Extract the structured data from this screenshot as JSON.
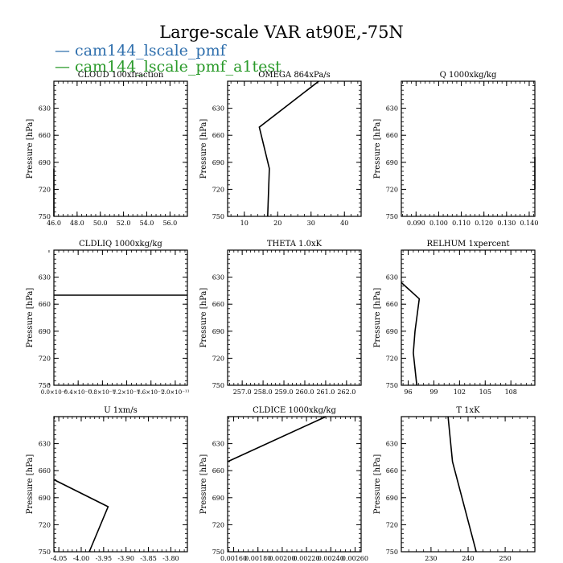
{
  "title": "Large-scale VAR at90E,-75N",
  "legend": {
    "items": [
      {
        "label": "cam144_lscale_pmf",
        "color": "#2f6fad"
      },
      {
        "label": "cam144_lscale_pmf_a1test",
        "color": "#2a9a2a"
      }
    ]
  },
  "chart_data": [
    {
      "type": "line",
      "title": "CLOUD  100xfraction",
      "ylabel": "Pressure [hPa]",
      "ylim": [
        750,
        600
      ],
      "yticks": [
        630,
        660,
        690,
        720,
        750
      ],
      "xlim": [
        46.0,
        57.5
      ],
      "xticks": [
        46.0,
        48.0,
        50.0,
        52.0,
        54.0,
        56.0
      ],
      "xticklabels": [
        "46.0",
        "48.0",
        "50.0",
        "52.0",
        "54.0",
        "56.0"
      ],
      "series": [
        {
          "x": [
            46.0,
            46.0
          ],
          "y": [
            697,
            750
          ]
        }
      ]
    },
    {
      "type": "line",
      "title": "OMEGA  864xPa/s",
      "ylabel": "Pressure [hPa]",
      "ylim": [
        750,
        600
      ],
      "yticks": [
        630,
        660,
        690,
        720,
        750
      ],
      "xlim": [
        5,
        45
      ],
      "xticks": [
        10,
        20,
        30,
        40
      ],
      "xticklabels": [
        "10",
        "20",
        "30",
        "40"
      ],
      "series": [
        {
          "x": [
            32.3,
            14.5,
            17.5,
            17.0
          ],
          "y": [
            600,
            651,
            697,
            750
          ]
        }
      ]
    },
    {
      "type": "line",
      "title": "Q  1000xkg/kg",
      "ylabel": "Pressure [hPa]",
      "ylim": [
        750,
        600
      ],
      "yticks": [
        630,
        660,
        690,
        720,
        750
      ],
      "xlim": [
        0.0835,
        0.1425
      ],
      "xticks": [
        0.09,
        0.1,
        0.11,
        0.12,
        0.13,
        0.14
      ],
      "xticklabels": [
        "0.090",
        "0.100",
        "0.110",
        "0.120",
        "0.130",
        "0.140"
      ],
      "series": [
        {
          "x": [
            0.1425,
            0.1425
          ],
          "y": [
            684,
            720
          ]
        }
      ]
    },
    {
      "type": "line",
      "title": "CLDLIQ  1000xkg/kg",
      "ylabel": "Pressure [hPa]",
      "ylim": [
        750,
        600
      ],
      "yticks": [
        630,
        660,
        690,
        720,
        750
      ],
      "xlim": [
        0.0,
        2.2e-11
      ],
      "xticks": [
        0.0,
        4e-12,
        8e-12,
        1.2e-11,
        1.6e-11,
        2e-11
      ],
      "xticklabels": [
        "0.0×10⁻¹",
        "0.4×10⁻¹¹",
        "0.8×10⁻¹¹",
        "1.2×10⁻¹¹",
        "1.6×10⁻¹¹",
        "2.0×10⁻¹¹"
      ],
      "series": [
        {
          "x": [
            0.0,
            2.2e-11
          ],
          "y": [
            650,
            650
          ]
        }
      ]
    },
    {
      "type": "line",
      "title": "THETA  1.0xK",
      "ylabel": "Pressure [hPa]",
      "ylim": [
        750,
        600
      ],
      "yticks": [
        630,
        660,
        690,
        720,
        750
      ],
      "xlim": [
        256.3,
        262.7
      ],
      "xticks": [
        257.0,
        258.0,
        259.0,
        260.0,
        261.0,
        262.0
      ],
      "xticklabels": [
        "257.0",
        "258.0",
        "259.0",
        "260.0",
        "261.0",
        "262.0"
      ],
      "series": []
    },
    {
      "type": "line",
      "title": "RELHUM  1xpercent",
      "ylabel": "Pressure [hPa]",
      "ylim": [
        750,
        600
      ],
      "yticks": [
        630,
        660,
        690,
        720,
        750
      ],
      "xlim": [
        95.2,
        110.8
      ],
      "xticks": [
        96,
        99,
        102,
        105,
        108
      ],
      "xticklabels": [
        "96",
        "99",
        "102",
        "105",
        "108"
      ],
      "series": [
        {
          "x": [
            95.2,
            97.3,
            96.8,
            96.6,
            97.0
          ],
          "y": [
            636,
            654,
            690,
            714,
            750
          ]
        }
      ]
    },
    {
      "type": "line",
      "title": "U  1xm/s",
      "ylabel": "Pressure [hPa]",
      "ylim": [
        750,
        600
      ],
      "yticks": [
        630,
        660,
        690,
        720,
        750
      ],
      "xlim": [
        -4.061,
        -3.763
      ],
      "xticks": [
        -4.05,
        -4.0,
        -3.95,
        -3.9,
        -3.85,
        -3.8
      ],
      "xticklabels": [
        "-4.05",
        "-4.00",
        "-3.95",
        "-3.90",
        "-3.85",
        "-3.80"
      ],
      "series": [
        {
          "x": [
            -4.061,
            -3.94,
            -3.982
          ],
          "y": [
            670,
            700,
            750
          ]
        }
      ]
    },
    {
      "type": "line",
      "title": "CLDICE  1000xkg/kg",
      "ylabel": "Pressure [hPa]",
      "ylim": [
        750,
        600
      ],
      "yticks": [
        630,
        660,
        690,
        720,
        750
      ],
      "xlim": [
        0.00155,
        0.00265
      ],
      "xticks": [
        0.0016,
        0.0018,
        0.002,
        0.0022,
        0.0024,
        0.0026
      ],
      "xticklabels": [
        "0.00160",
        "0.00180",
        "0.00200",
        "0.00220",
        "0.00240",
        "0.00260"
      ],
      "series": [
        {
          "x": [
            0.00155,
            0.00236
          ],
          "y": [
            650,
            600
          ]
        }
      ]
    },
    {
      "type": "line",
      "title": "T  1xK",
      "ylabel": "Pressure [hPa]",
      "ylim": [
        750,
        600
      ],
      "yticks": [
        630,
        660,
        690,
        720,
        750
      ],
      "xlim": [
        222,
        258
      ],
      "xticks": [
        230,
        240,
        250
      ],
      "xticklabels": [
        "230",
        "240",
        "250"
      ],
      "series": [
        {
          "x": [
            234.6,
            235.8,
            242.2
          ],
          "y": [
            600,
            650,
            750
          ]
        }
      ]
    }
  ]
}
